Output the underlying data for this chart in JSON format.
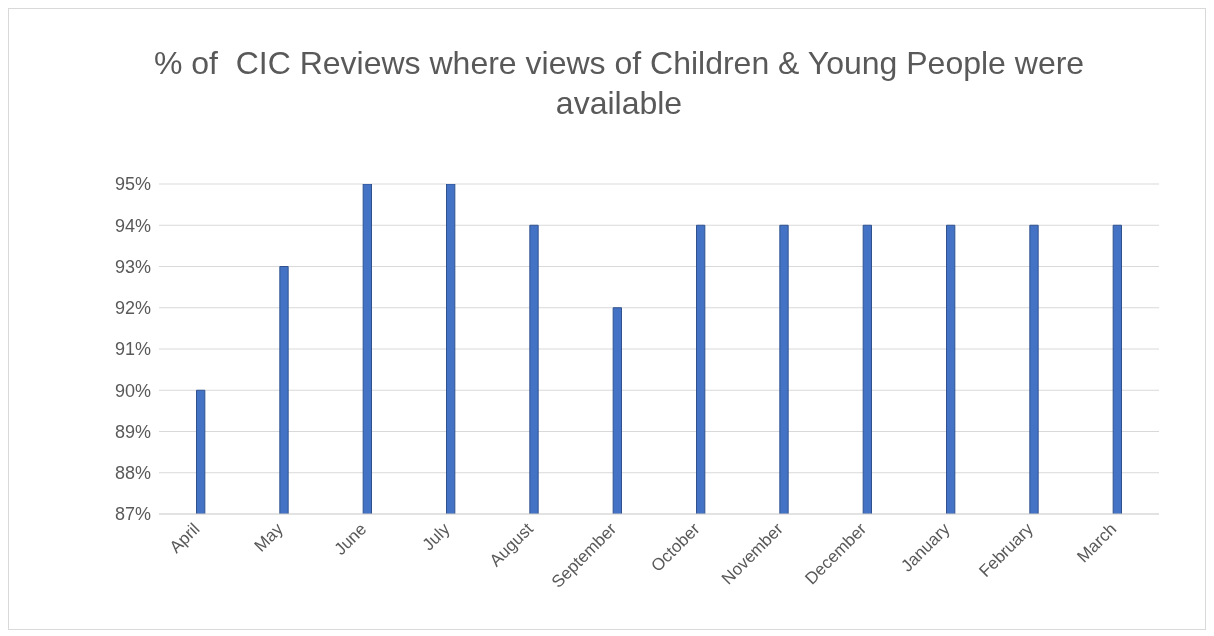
{
  "chart_data": {
    "type": "bar",
    "title": "% of  CIC Reviews where views of Children & Young People were available",
    "categories": [
      "April",
      "May",
      "June",
      "July",
      "August",
      "September",
      "October",
      "November",
      "December",
      "January",
      "February",
      "March"
    ],
    "values": [
      90,
      93,
      95,
      95,
      94,
      92,
      94,
      94,
      94,
      94,
      94,
      94
    ],
    "color": "#4472c4",
    "ylim": [
      87,
      95
    ],
    "yticks": [
      {
        "value": 87,
        "label": "87%"
      },
      {
        "value": 88,
        "label": "88%"
      },
      {
        "value": 89,
        "label": "89%"
      },
      {
        "value": 90,
        "label": "90%"
      },
      {
        "value": 91,
        "label": "91%"
      },
      {
        "value": 92,
        "label": "92%"
      },
      {
        "value": 93,
        "label": "93%"
      },
      {
        "value": 94,
        "label": "94%"
      },
      {
        "value": 95,
        "label": "95%"
      }
    ],
    "grid": "y"
  }
}
